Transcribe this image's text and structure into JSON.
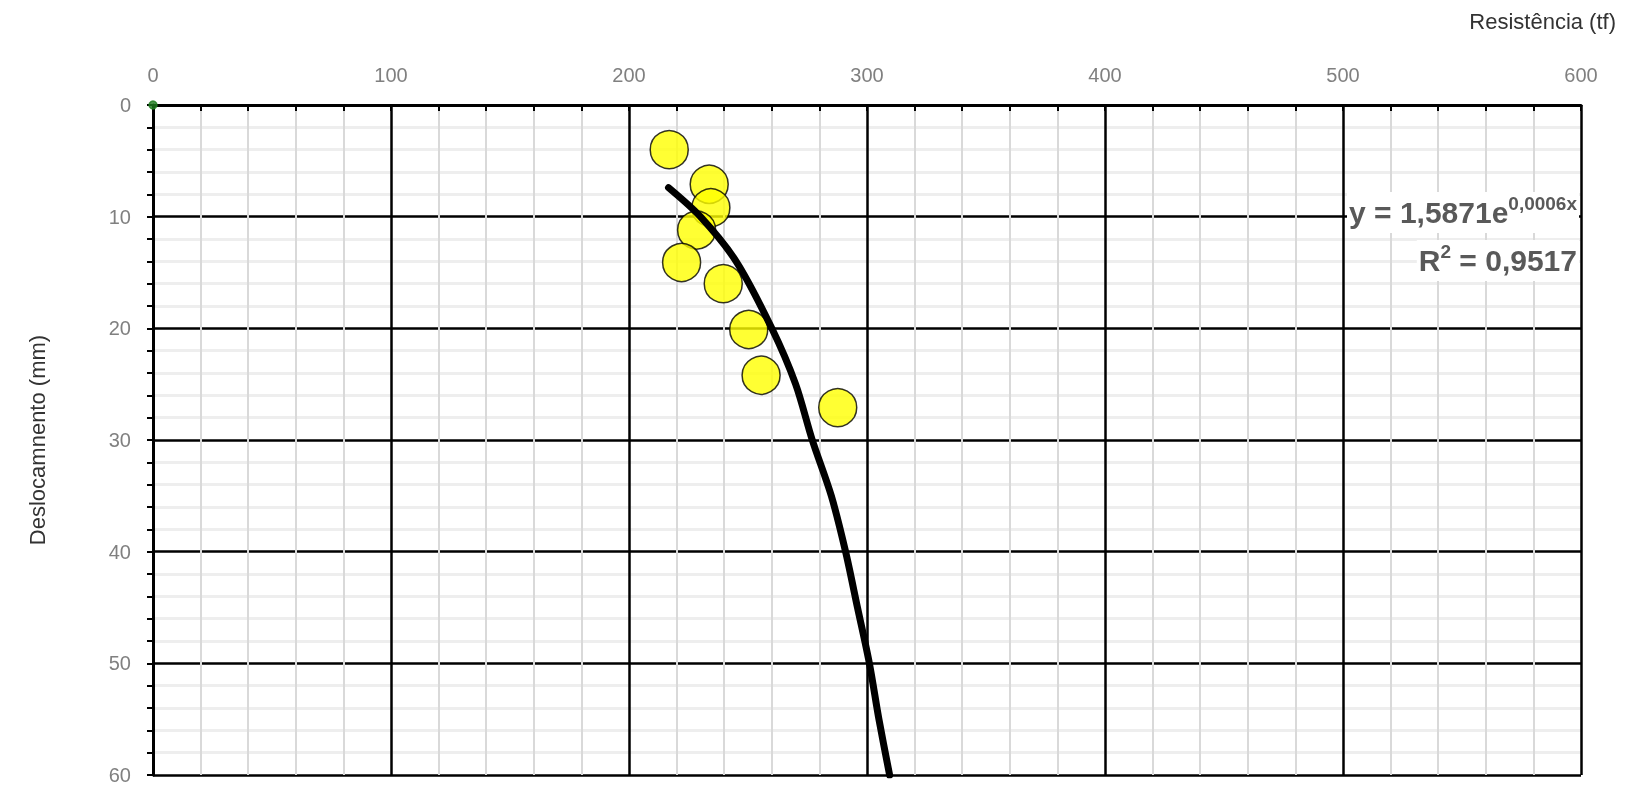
{
  "chart_data": {
    "type": "scatter",
    "xlabel": "Resistência (tf)",
    "ylabel": "Deslocamnento (mm)",
    "xlim": [
      0,
      600
    ],
    "xticks": [
      0,
      100,
      200,
      300,
      400,
      500,
      600
    ],
    "ylim": [
      60,
      0
    ],
    "yticks": [
      0,
      10,
      20,
      30,
      40,
      50,
      60
    ],
    "grid": true,
    "annotations": [
      "y = 1,5871e$^{0,0006x}$",
      "R$^{2}$ = 0,9517"
    ],
    "series": [
      {
        "color": "#1e7b1e",
        "marker": "circle",
        "x": [
          0
        ],
        "values": [
          0
        ]
      },
      {
        "color": "#ffff00",
        "marker": "circle",
        "x": [
          216.9,
          233.7,
          234.4,
          228.4,
          222.1,
          239.6,
          250.3,
          255.5,
          287.7
        ],
        "values": [
          4.0,
          7.1,
          9.2,
          11.2,
          14.1,
          16.0,
          20.1,
          24.2,
          27.1
        ]
      },
      {
        "type": "line",
        "color": "#000000",
        "marker": "none",
        "line_style": "solid",
        "x": [
          216.6,
          230,
          245,
          260,
          270,
          277,
          285,
          291,
          296,
          301,
          305,
          309.5
        ],
        "values": [
          7.4,
          10,
          14,
          20,
          25,
          30,
          35,
          40,
          45,
          50,
          55,
          60
        ]
      }
    ]
  }
}
